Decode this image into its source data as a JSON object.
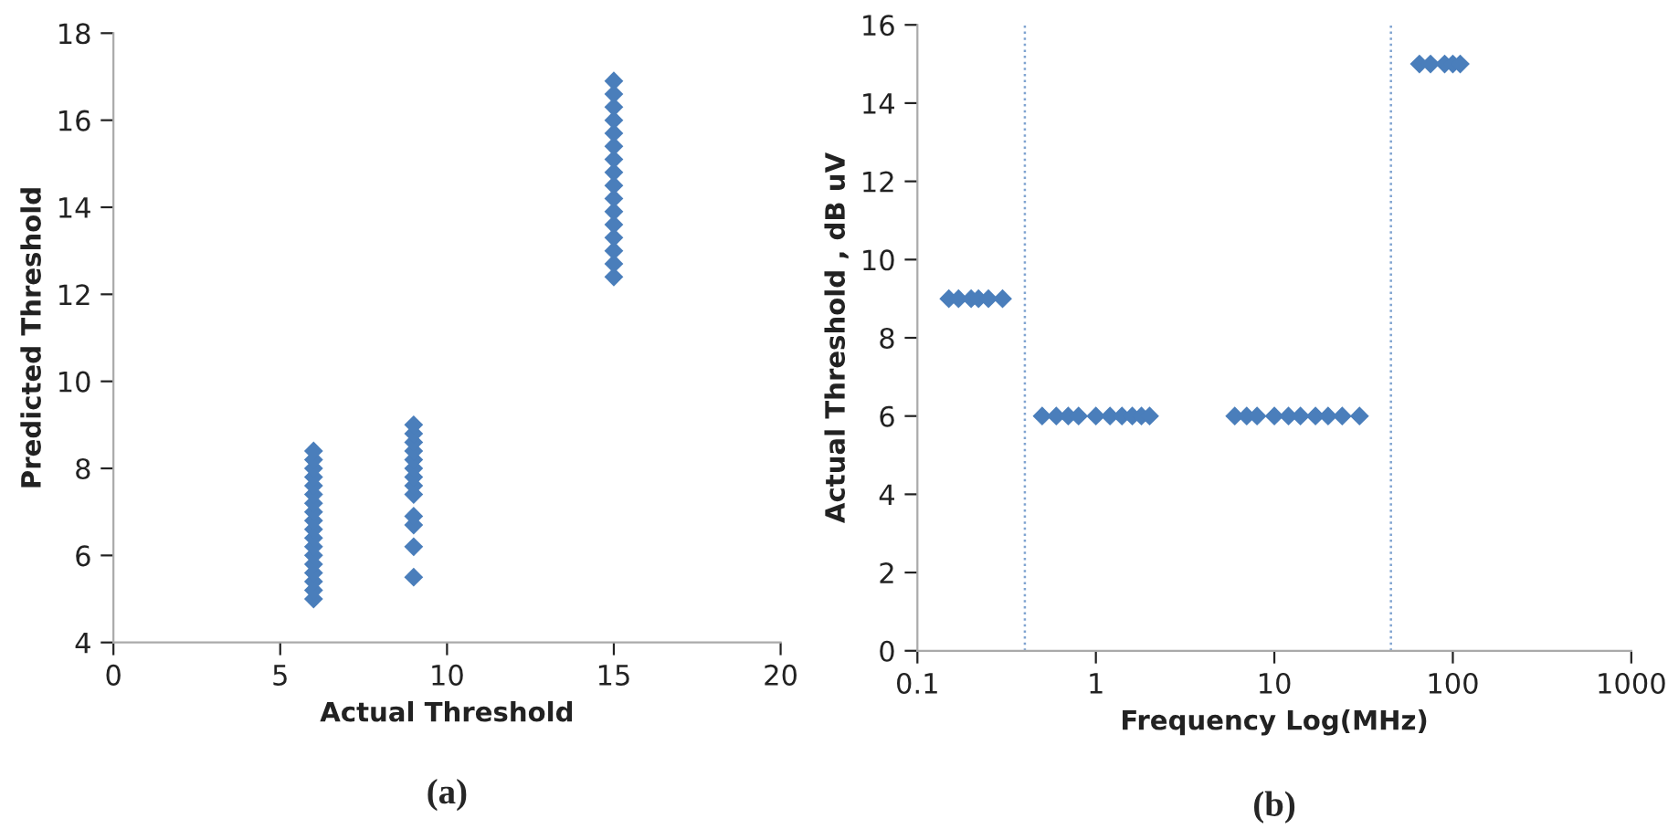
{
  "chart_data": [
    {
      "type": "scatter",
      "xlabel": "Actual Threshold",
      "ylabel": "Predicted Threshold",
      "marker": "diamond",
      "grid": false,
      "legend": false,
      "xlim": [
        0,
        20
      ],
      "xticks": [
        0,
        5,
        10,
        15,
        20
      ],
      "ylim": [
        4,
        18
      ],
      "yticks": [
        4,
        6,
        8,
        10,
        12,
        14,
        16,
        18
      ],
      "annotations": [
        "(a)"
      ],
      "series": [
        {
          "color": "#4a7ebb",
          "x": [
            6,
            6,
            6,
            6,
            6,
            6,
            6,
            6,
            6,
            6,
            6,
            6,
            6,
            6,
            6,
            6,
            6,
            6,
            9,
            9,
            9,
            9,
            9,
            9,
            9,
            9,
            9,
            9,
            9,
            9,
            9,
            15,
            15,
            15,
            15,
            15,
            15,
            15,
            15,
            15,
            15,
            15,
            15,
            15,
            15,
            15,
            15
          ],
          "values": [
            5.0,
            5.2,
            5.4,
            5.6,
            5.8,
            6.0,
            6.2,
            6.4,
            6.6,
            6.8,
            7.0,
            7.2,
            7.4,
            7.6,
            7.8,
            8.0,
            8.2,
            8.4,
            5.5,
            6.2,
            6.7,
            6.9,
            7.4,
            7.6,
            7.8,
            8.0,
            8.2,
            8.4,
            8.6,
            8.8,
            9.0,
            12.4,
            12.7,
            13.0,
            13.3,
            13.6,
            13.9,
            14.2,
            14.5,
            14.8,
            15.1,
            15.4,
            15.7,
            16.0,
            16.3,
            16.6,
            16.9
          ]
        }
      ]
    },
    {
      "type": "scatter",
      "xlabel": "Frequency Log(MHz)",
      "ylabel": "Actual Threshold , dB uV",
      "marker": "diamond",
      "grid": false,
      "legend": false,
      "log": "x",
      "xlim": [
        0.1,
        1000
      ],
      "xticks": [
        0.1,
        1,
        10,
        100,
        1000
      ],
      "ylim": [
        0,
        16
      ],
      "yticks": [
        0,
        2,
        4,
        6,
        8,
        10,
        12,
        14,
        16
      ],
      "annotations": [
        "(b)"
      ],
      "ref_lines": [
        {
          "axis": "x",
          "value": 0.4,
          "label": null,
          "color": "#7fa3d0",
          "line_style": "dotted"
        },
        {
          "axis": "x",
          "value": 45,
          "label": null,
          "color": "#7fa3d0",
          "line_style": "dotted"
        }
      ],
      "series": [
        {
          "color": "#4a7ebb",
          "x": [
            0.15,
            0.17,
            0.2,
            0.22,
            0.25,
            0.3,
            0.5,
            0.6,
            0.7,
            0.8,
            1,
            1.2,
            1.4,
            1.6,
            1.8,
            2,
            6,
            7,
            8,
            10,
            12,
            14,
            17,
            20,
            24,
            30,
            65,
            75,
            90,
            100,
            110
          ],
          "values": [
            9,
            9,
            9,
            9,
            9,
            9,
            6,
            6,
            6,
            6,
            6,
            6,
            6,
            6,
            6,
            6,
            6,
            6,
            6,
            6,
            6,
            6,
            6,
            6,
            6,
            6,
            15,
            15,
            15,
            15,
            15
          ]
        }
      ]
    }
  ]
}
